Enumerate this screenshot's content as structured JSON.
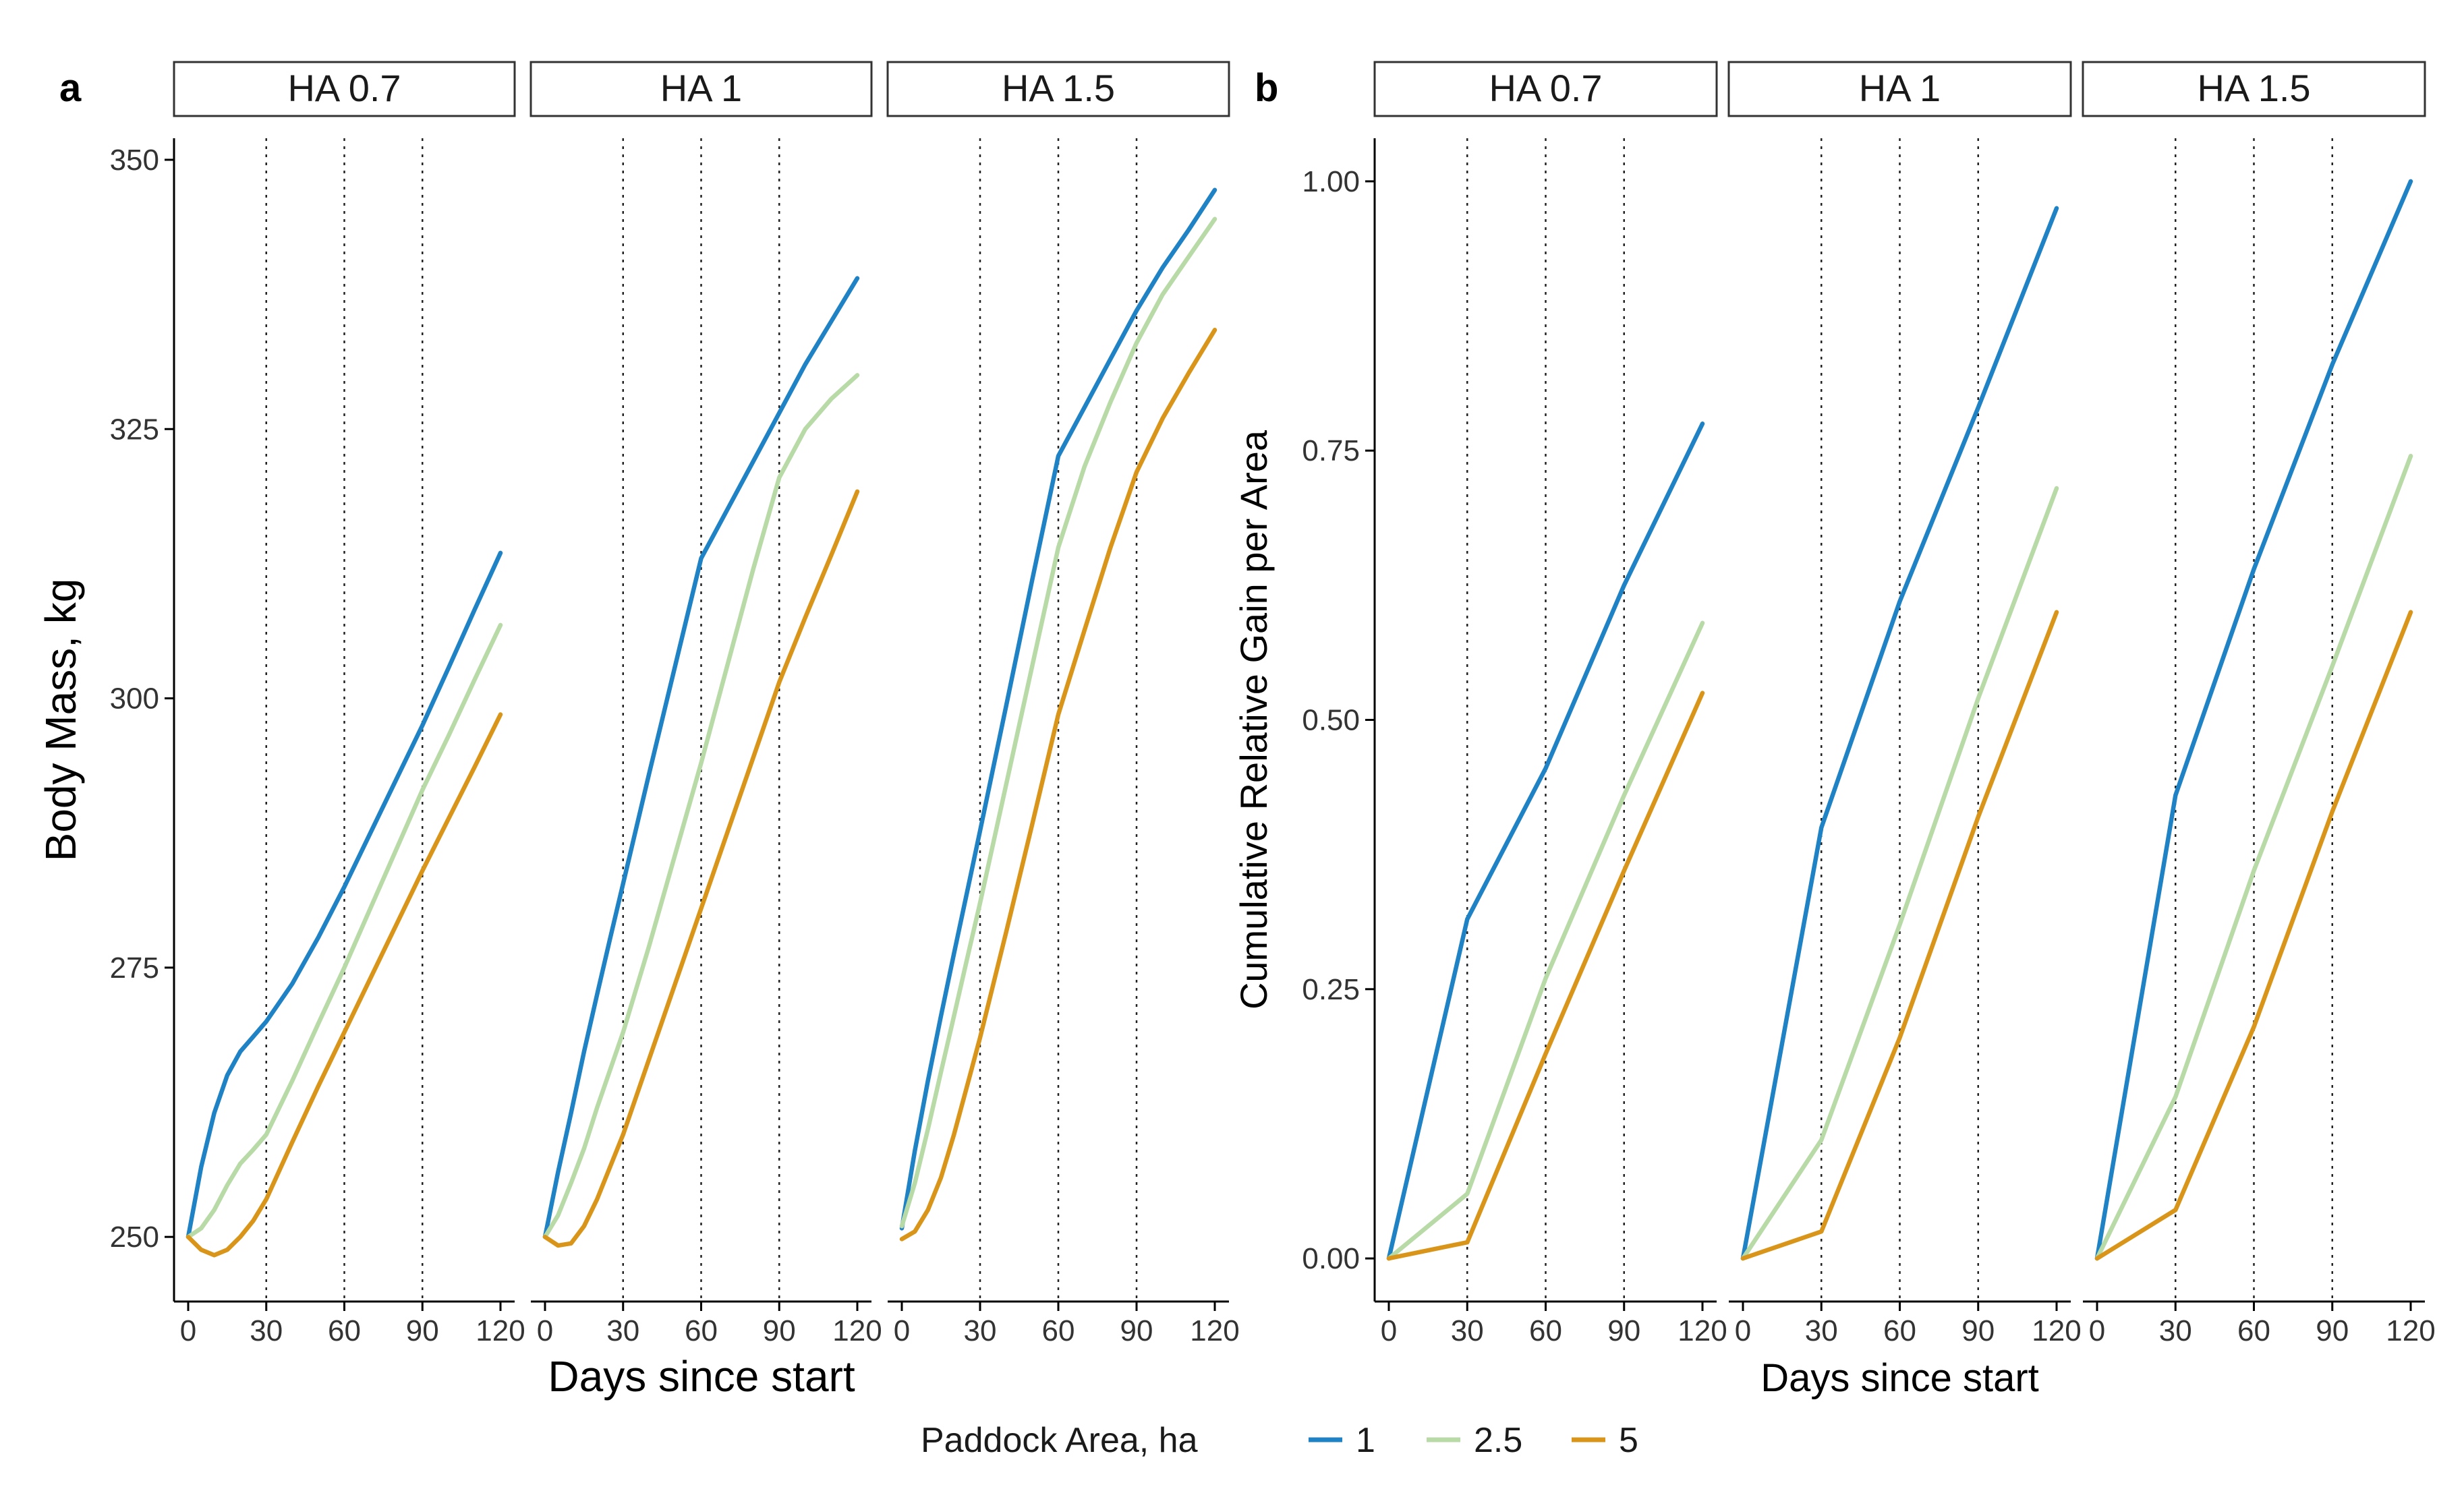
{
  "panel_labels": [
    "a",
    "b"
  ],
  "chart_data": [
    {
      "type": "line",
      "panel": "a",
      "facets": [
        "HA 0.7",
        "HA 1",
        "HA 1.5"
      ],
      "xlabel": "Days since start",
      "ylabel": "Body Mass, kg",
      "xlim": [
        0,
        120
      ],
      "ylim": [
        244,
        352
      ],
      "xticks": [
        0,
        30,
        60,
        90,
        120
      ],
      "yticks": [
        250,
        275,
        300,
        325,
        350
      ],
      "vlines": [
        30,
        60,
        90
      ],
      "x": [
        0,
        5,
        10,
        15,
        20,
        25,
        30,
        40,
        50,
        60,
        70,
        80,
        90,
        100,
        110,
        120
      ],
      "panels": [
        {
          "facet": "HA 0.7",
          "series": [
            {
              "name": "1",
              "values": [
                250,
                256.5,
                261.5,
                265,
                267.2,
                268.6,
                270,
                273.5,
                277.8,
                282.5,
                287.5,
                292.5,
                297.5,
                302.8,
                308.2,
                313.5
              ]
            },
            {
              "name": "2.5",
              "values": [
                250,
                250.8,
                252.5,
                254.8,
                256.8,
                258.1,
                259.5,
                264.5,
                269.8,
                275,
                280.5,
                286,
                291.5,
                296.5,
                301.7,
                306.8
              ]
            },
            {
              "name": "5",
              "values": [
                250,
                248.8,
                248.3,
                248.8,
                250,
                251.5,
                253.5,
                258.8,
                264,
                269,
                274,
                279,
                284,
                288.8,
                293.6,
                298.5
              ]
            }
          ]
        },
        {
          "facet": "HA 1",
          "series": [
            {
              "name": "1",
              "values": [
                250,
                256,
                261.5,
                267.2,
                272.5,
                277.7,
                282.8,
                293,
                303,
                313,
                317.5,
                322,
                326.5,
                331,
                335,
                339
              ]
            },
            {
              "name": "2.5",
              "values": [
                250,
                252,
                255,
                258.2,
                262,
                265.5,
                269,
                277,
                285.5,
                294,
                303,
                312,
                320.5,
                325,
                327.8,
                330
              ]
            },
            {
              "name": "5",
              "values": [
                250,
                249.2,
                249.4,
                251,
                253.5,
                256.5,
                259.5,
                266.5,
                273.5,
                280.5,
                287.5,
                294.5,
                301.5,
                307.5,
                313.3,
                319.2
              ]
            }
          ]
        },
        {
          "facet": "HA 1.5",
          "series": [
            {
              "name": "1",
              "values": [
                250.8,
                258,
                264.5,
                270.5,
                276.3,
                282,
                287.7,
                299.3,
                311,
                322.5,
                327,
                331.5,
                336,
                340,
                343.5,
                347.2
              ]
            },
            {
              "name": "2.5",
              "values": [
                251,
                255,
                260,
                265.3,
                270.5,
                275.8,
                281,
                292,
                303,
                314,
                321.5,
                327.5,
                333,
                337.5,
                341,
                344.5
              ]
            },
            {
              "name": "5",
              "values": [
                249.8,
                250.5,
                252.5,
                255.5,
                259.5,
                264,
                268.5,
                278.3,
                288.3,
                298.5,
                306.3,
                314,
                321,
                326,
                330.2,
                334.2
              ]
            }
          ]
        }
      ]
    },
    {
      "type": "line",
      "panel": "b",
      "facets": [
        "HA 0.7",
        "HA 1",
        "HA 1.5"
      ],
      "xlabel": "Days since start",
      "ylabel": "Cumulative Relative Gain per Area",
      "xlim": [
        0,
        120
      ],
      "ylim": [
        -0.04,
        1.04
      ],
      "xticks": [
        0,
        30,
        60,
        90,
        120
      ],
      "yticks": [
        0.0,
        0.25,
        0.5,
        0.75,
        1.0
      ],
      "ytick_labels": [
        "0.00",
        "0.25",
        "0.50",
        "0.75",
        "1.00"
      ],
      "vlines": [
        30,
        60,
        90
      ],
      "x": [
        0,
        30,
        60,
        90,
        120
      ],
      "panels": [
        {
          "facet": "HA 0.7",
          "series": [
            {
              "name": "1",
              "values": [
                0.0,
                0.315,
                0.455,
                0.625,
                0.775
              ]
            },
            {
              "name": "2.5",
              "values": [
                0.0,
                0.06,
                0.26,
                0.43,
                0.59
              ]
            },
            {
              "name": "5",
              "values": [
                0.0,
                0.015,
                0.19,
                0.36,
                0.525
              ]
            }
          ]
        },
        {
          "facet": "HA 1",
          "series": [
            {
              "name": "1",
              "values": [
                0.0,
                0.4,
                0.61,
                0.79,
                0.975
              ]
            },
            {
              "name": "2.5",
              "values": [
                0.0,
                0.11,
                0.31,
                0.52,
                0.715
              ]
            },
            {
              "name": "5",
              "values": [
                0.0,
                0.025,
                0.205,
                0.41,
                0.6
              ]
            }
          ]
        },
        {
          "facet": "HA 1.5",
          "series": [
            {
              "name": "1",
              "values": [
                0.0,
                0.43,
                0.64,
                0.83,
                1.0
              ]
            },
            {
              "name": "2.5",
              "values": [
                0.0,
                0.15,
                0.36,
                0.55,
                0.745
              ]
            },
            {
              "name": "5",
              "values": [
                0.0,
                0.045,
                0.215,
                0.415,
                0.6
              ]
            }
          ]
        }
      ]
    }
  ],
  "legend": {
    "title": "Paddock Area, ha",
    "position": "bottom",
    "entries": [
      {
        "label": "1",
        "color": "#1F82C4"
      },
      {
        "label": "2.5",
        "color": "#B7DAA6"
      },
      {
        "label": "5",
        "color": "#D89519"
      }
    ]
  }
}
